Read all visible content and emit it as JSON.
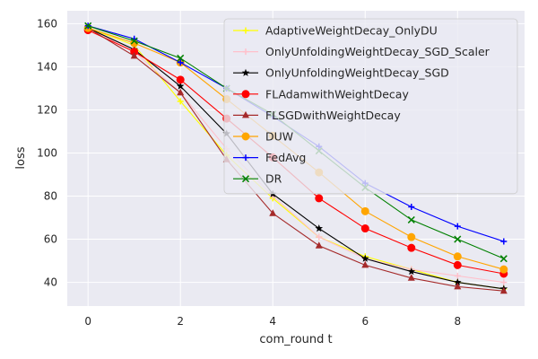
{
  "chart_data": {
    "type": "line",
    "title": "",
    "xlabel": "com_round t",
    "ylabel": "loss",
    "x": [
      0,
      1,
      2,
      3,
      4,
      5,
      6,
      7,
      8,
      9
    ],
    "xlim": [
      -0.45,
      9.45
    ],
    "ylim": [
      29,
      166
    ],
    "xticks": [
      0,
      2,
      4,
      6,
      8
    ],
    "yticks": [
      40,
      60,
      80,
      100,
      120,
      140,
      160
    ],
    "grid": true,
    "legend_position": "top-right",
    "series": [
      {
        "name": "AdaptiveWeightDecay_OnlyDU",
        "color": "#ffff00",
        "marker": "plus",
        "values": [
          158,
          150,
          124,
          99,
          79,
          61,
          52,
          46,
          40,
          37
        ]
      },
      {
        "name": "OnlyUnfoldingWeightDecay_SGD_Scaler",
        "color": "#ffc0cb",
        "marker": "plus",
        "values": [
          158,
          147,
          128,
          102,
          80,
          61,
          51,
          46,
          43,
          40
        ]
      },
      {
        "name": "OnlyUnfoldingWeightDecay_SGD",
        "color": "#000000",
        "marker": "star",
        "values": [
          158,
          148,
          131,
          109,
          81,
          65,
          51,
          45,
          40,
          37
        ]
      },
      {
        "name": "FLAdamwithWeightDecay",
        "color": "#ff0000",
        "marker": "circle",
        "values": [
          157,
          147,
          134,
          116,
          98,
          79,
          65,
          56,
          48,
          44
        ]
      },
      {
        "name": "FLSGDwithWeightDecay",
        "color": "#a52a2a",
        "marker": "triangle",
        "values": [
          158,
          145,
          128,
          97,
          72,
          57,
          48,
          42,
          38,
          36
        ]
      },
      {
        "name": "DUW",
        "color": "#ffa500",
        "marker": "circle",
        "values": [
          158,
          151,
          142,
          125,
          108,
          91,
          73,
          61,
          52,
          46
        ]
      },
      {
        "name": "FedAvg",
        "color": "#0000ff",
        "marker": "plus",
        "values": [
          159,
          153,
          142,
          130,
          117,
          103,
          86,
          75,
          66,
          59
        ]
      },
      {
        "name": "DR",
        "color": "#008000",
        "marker": "x",
        "values": [
          159,
          152,
          144,
          130,
          118,
          101,
          84,
          69,
          60,
          51
        ]
      }
    ]
  }
}
